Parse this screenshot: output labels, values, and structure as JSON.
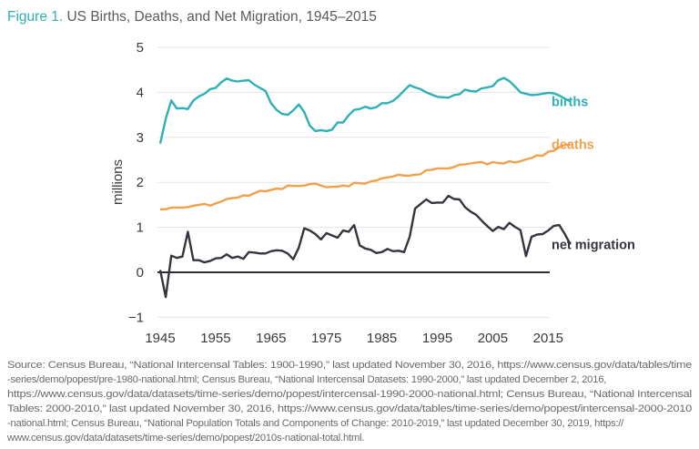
{
  "title": {
    "prefix": "Figure 1.",
    "text": " US Births, Deaths, and Net Migration, 1945–2015"
  },
  "source_lines": [
    "Source: Census Bureau, “National Intercensal Tables: 1900-1990,” last updated November 30, 2016, https://www.census.gov/data/tables/time",
    "-series/demo/popest/pre-1980-national.html; Census Bureau, “National Intercensal Datasets: 1990-2000,” last updated December 2, 2016,",
    "https://www.census.gov/data/datasets/time-series/demo/popest/intercensal-1990-2000-national.html; Census Bureau, “National Intercensal",
    "Tables: 2000-2010,” last updated November 30, 2016, https://www.census.gov/data/tables/time-series/demo/popest/intercensal-2000-2010",
    "-national.html; Census Bureau, “National Population Totals and Components of Change: 2010-2019,” last updated December 30, 2019, https://",
    "www.census.gov/data/datasets/time-series/demo/popest/2010s-national-total.html."
  ],
  "chart_data": {
    "type": "line",
    "title": "Figure 1. US Births, Deaths, and Net Migration, 1945–2015",
    "xlabel": "",
    "ylabel": "millions",
    "xlim": [
      1945,
      2019
    ],
    "ylim": [
      -1,
      5
    ],
    "xticks": [
      1945,
      1955,
      1965,
      1975,
      1985,
      1995,
      2005,
      2015
    ],
    "yticks": [
      -1,
      0,
      1,
      2,
      3,
      4,
      5
    ],
    "grid": "horizontal",
    "legend": "inline labels at line ends (right)",
    "x_start": 1945,
    "series": [
      {
        "name": "births",
        "color": "#2fb0b6",
        "values": [
          2.86,
          3.41,
          3.82,
          3.64,
          3.65,
          3.63,
          3.82,
          3.91,
          3.97,
          4.07,
          4.1,
          4.22,
          4.31,
          4.26,
          4.24,
          4.26,
          4.27,
          4.17,
          4.1,
          4.03,
          3.76,
          3.61,
          3.52,
          3.5,
          3.6,
          3.73,
          3.56,
          3.26,
          3.14,
          3.16,
          3.14,
          3.17,
          3.33,
          3.33,
          3.49,
          3.61,
          3.63,
          3.68,
          3.64,
          3.67,
          3.76,
          3.76,
          3.81,
          3.91,
          4.04,
          4.16,
          4.11,
          4.07,
          4.0,
          3.95,
          3.9,
          3.89,
          3.88,
          3.94,
          3.96,
          4.06,
          4.03,
          4.02,
          4.09,
          4.11,
          4.14,
          4.27,
          4.32,
          4.25,
          4.13,
          4.0,
          3.97,
          3.94,
          3.95,
          3.97,
          3.99,
          3.98,
          3.93,
          3.86,
          3.8
        ]
      },
      {
        "name": "deaths",
        "color": "#f2a14b",
        "values": [
          1.4,
          1.4,
          1.44,
          1.44,
          1.44,
          1.45,
          1.48,
          1.5,
          1.52,
          1.48,
          1.53,
          1.57,
          1.63,
          1.65,
          1.66,
          1.71,
          1.7,
          1.76,
          1.81,
          1.8,
          1.83,
          1.86,
          1.85,
          1.93,
          1.92,
          1.92,
          1.93,
          1.96,
          1.97,
          1.93,
          1.89,
          1.9,
          1.9,
          1.93,
          1.91,
          1.99,
          1.98,
          1.97,
          2.02,
          2.04,
          2.09,
          2.11,
          2.13,
          2.17,
          2.15,
          2.15,
          2.17,
          2.18,
          2.27,
          2.28,
          2.31,
          2.31,
          2.31,
          2.34,
          2.39,
          2.4,
          2.42,
          2.44,
          2.45,
          2.4,
          2.45,
          2.43,
          2.42,
          2.47,
          2.44,
          2.47,
          2.51,
          2.54,
          2.6,
          2.59,
          2.68,
          2.7,
          2.78,
          2.83,
          2.84
        ]
      },
      {
        "name": "net migration",
        "color": "#34363d",
        "values": [
          0.05,
          -0.55,
          0.37,
          0.32,
          0.35,
          0.9,
          0.27,
          0.27,
          0.22,
          0.25,
          0.31,
          0.32,
          0.4,
          0.32,
          0.35,
          0.3,
          0.45,
          0.44,
          0.42,
          0.42,
          0.47,
          0.49,
          0.48,
          0.42,
          0.29,
          0.55,
          0.98,
          0.93,
          0.85,
          0.73,
          0.87,
          0.82,
          0.77,
          0.93,
          0.9,
          1.05,
          0.6,
          0.53,
          0.5,
          0.43,
          0.45,
          0.52,
          0.47,
          0.48,
          0.45,
          0.79,
          1.42,
          1.52,
          1.62,
          1.54,
          1.55,
          1.55,
          1.7,
          1.63,
          1.62,
          1.45,
          1.35,
          1.28,
          1.15,
          1.03,
          0.92,
          1.01,
          0.96,
          1.1,
          1.01,
          0.94,
          0.36,
          0.79,
          0.84,
          0.85,
          0.93,
          1.03,
          1.05,
          0.85,
          0.62
        ]
      }
    ]
  }
}
